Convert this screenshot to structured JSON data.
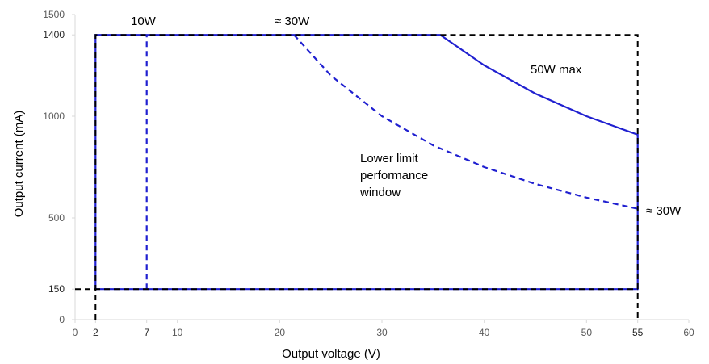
{
  "chart_data": {
    "type": "line",
    "xlabel": "Output voltage (V)",
    "ylabel": "Output current (mA)",
    "xlim": [
      0,
      60
    ],
    "ylim": [
      0,
      1500
    ],
    "x_ticks": [
      0,
      2,
      7,
      10,
      20,
      30,
      40,
      50,
      55,
      60
    ],
    "y_ticks": [
      0,
      150,
      500,
      1000,
      1400,
      1500
    ],
    "grid": false,
    "series": [
      {
        "name": "",
        "style": "solid",
        "color": "#2020d0",
        "points": [
          [
            2,
            150
          ],
          [
            2,
            1400
          ],
          [
            35.7,
            1400
          ],
          [
            40,
            1250
          ],
          [
            45,
            1111
          ],
          [
            50,
            1000
          ],
          [
            55,
            909
          ],
          [
            55,
            150
          ],
          [
            2,
            150
          ]
        ]
      },
      {
        "name": "",
        "style": "dashed",
        "color": "#2020d0",
        "points": [
          [
            7,
            150
          ],
          [
            7,
            1400
          ]
        ]
      },
      {
        "name": "",
        "style": "dashed",
        "color": "#2020d0",
        "points": [
          [
            21.4,
            1400
          ],
          [
            25,
            1200
          ],
          [
            30,
            1000
          ],
          [
            35,
            857
          ],
          [
            40,
            750
          ],
          [
            45,
            667
          ],
          [
            50,
            600
          ],
          [
            55,
            545
          ]
        ]
      },
      {
        "name": "",
        "style": "dashed",
        "color": "#000000",
        "points": [
          [
            2,
            0
          ],
          [
            2,
            1400
          ],
          [
            55,
            1400
          ],
          [
            55,
            0
          ]
        ]
      },
      {
        "name": "",
        "style": "dashed",
        "color": "#000000",
        "points": [
          [
            0,
            150
          ],
          [
            55,
            150
          ]
        ]
      }
    ],
    "annotations": [
      {
        "text": "10W",
        "x": 7,
        "y": 1400
      },
      {
        "text": "≈ 30W",
        "x": 21.4,
        "y": 1400
      },
      {
        "text": "50W max",
        "x": 48,
        "y": 1250
      },
      {
        "text": "Lower limit",
        "x": 30,
        "y": 800
      },
      {
        "text": "performance",
        "x": 30,
        "y": 800
      },
      {
        "text": "window",
        "x": 30,
        "y": 800
      },
      {
        "text": "≈ 30W",
        "x": 55,
        "y": 545
      }
    ]
  }
}
